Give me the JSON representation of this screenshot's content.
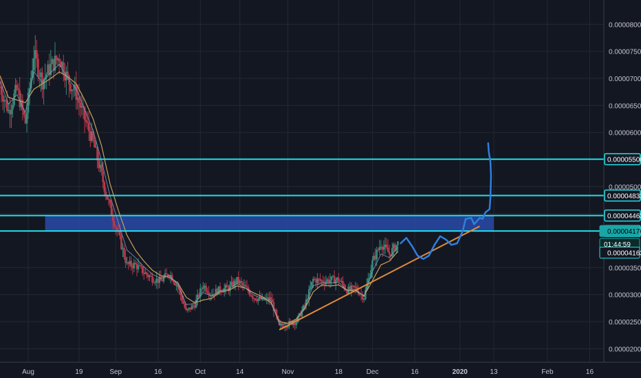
{
  "chart_data": {
    "type": "candlestick",
    "y_axis": {
      "ylim": [
        1.75e-05,
        8.45e-05
      ],
      "tick_labels": [
        "0.00008000",
        "0.00007500",
        "0.00007000",
        "0.00006500",
        "0.00006000",
        "0.00005000",
        "0.00004500",
        "0.00003500",
        "0.00003000",
        "0.00002500",
        "0.00002000"
      ],
      "tick_values": [
        8e-05,
        7.5e-05,
        7e-05,
        6.5e-05,
        6e-05,
        5e-05,
        4.5e-05,
        3.5e-05,
        3e-05,
        2.5e-05,
        2e-05
      ]
    },
    "x_axis": {
      "tick_labels": [
        "Aug",
        "19",
        "Sep",
        "16",
        "Oct",
        "14",
        "Nov",
        "18",
        "Dec",
        "16",
        "2020",
        "13",
        "Feb",
        "16"
      ],
      "tick_days": [
        0,
        18,
        31,
        46,
        61,
        75,
        92,
        110,
        122,
        137,
        153,
        165,
        184,
        199
      ],
      "xlim_days": [
        -10,
        204
      ]
    },
    "horizontal_lines": [
      {
        "price_label": "0.00005506",
        "value": 5.506e-05,
        "color": "#26e0e8"
      },
      {
        "price_label": "0.00004833",
        "value": 4.833e-05,
        "color": "#26e0e8"
      },
      {
        "price_label": "0.00004463",
        "value": 4.463e-05,
        "color": "#26e0e8"
      },
      {
        "price_label": "0.00004176",
        "value": 4.176e-05,
        "color": "#26e0e8"
      }
    ],
    "price_markers": [
      {
        "price_label": "0.00004176",
        "value": 4.176e-05,
        "style": "teal"
      },
      {
        "price_label": "01:44:59",
        "value": 3.936e-05,
        "style": "dark"
      },
      {
        "price_label": "0.00004163",
        "value": 3.776e-05,
        "style": "outline"
      }
    ],
    "zone": {
      "from_value": 4.176e-05,
      "to_value": 4.463e-05,
      "from_day": 6,
      "to_day": 165,
      "color": "#2a4aa8"
    },
    "trendline": {
      "points": [
        [
          89,
          2.35e-05
        ],
        [
          160,
          4.265e-05
        ]
      ],
      "color": "#e08a3c"
    },
    "projection_path_color": "#2f7fe0",
    "price_series_days": [
      -10,
      -7,
      -4,
      -1,
      2,
      5,
      8,
      11,
      14,
      17,
      20,
      23,
      26,
      29,
      32,
      35,
      38,
      41,
      44,
      47,
      50,
      53,
      56,
      59,
      62,
      65,
      68,
      71,
      74,
      77,
      80,
      83,
      86,
      89,
      92,
      95,
      98,
      101,
      104,
      107,
      110,
      113,
      116,
      119,
      122,
      125,
      128,
      131
    ],
    "price_series_values": [
      6.85e-05,
      6.4e-05,
      6.8e-05,
      6.18e-05,
      7.45e-05,
      6.95e-05,
      7.22e-05,
      7.4e-05,
      6.98e-05,
      6.72e-05,
      6.25e-05,
      5.82e-05,
      5.2e-05,
      4.6e-05,
      4.1e-05,
      3.55e-05,
      3.55e-05,
      3.41e-05,
      3.3e-05,
      3.25e-05,
      3.4e-05,
      3.15e-05,
      2.68e-05,
      2.82e-05,
      3.18e-05,
      3.01e-05,
      3.1e-05,
      3.12e-05,
      3.26e-05,
      3.12e-05,
      2.95e-05,
      2.9e-05,
      2.92e-05,
      2.4e-05,
      2.46e-05,
      2.5e-05,
      2.8e-05,
      3.28e-05,
      3.25e-05,
      3.27e-05,
      3.28e-05,
      3.08e-05,
      3.12e-05,
      2.95e-05,
      3.6e-05,
      3.95e-05,
      3.75e-05,
      3.95e-05
    ],
    "ma_series_values": [
      7.05e-05,
      6.65e-05,
      6.6e-05,
      6.55e-05,
      6.8e-05,
      6.9e-05,
      7e-05,
      7.12e-05,
      7.03e-05,
      6.9e-05,
      6.6e-05,
      6.25e-05,
      5.75e-05,
      5.05e-05,
      4.55e-05,
      4.1e-05,
      3.82e-05,
      3.62e-05,
      3.45e-05,
      3.35e-05,
      3.32e-05,
      3.22e-05,
      2.95e-05,
      2.85e-05,
      2.9e-05,
      2.93e-05,
      3.05e-05,
      3.08e-05,
      3.16e-05,
      3.12e-05,
      3.03e-05,
      2.96e-05,
      2.85e-05,
      2.5e-05,
      2.47e-05,
      2.55e-05,
      2.74e-05,
      3.05e-05,
      3.18e-05,
      3.16e-05,
      3.18e-05,
      3.08e-05,
      3.07e-05,
      2.98e-05,
      3.26e-05,
      3.55e-05,
      3.62e-05,
      3.8e-05
    ]
  },
  "colors": {
    "background": "#131722",
    "grid": "#242832",
    "axis_text": "#c3c6ce",
    "candle_up": "#3a8a7a",
    "candle_down": "#b8394a",
    "ma_line": "#c9a15c",
    "ma_fast": "#7fa0c0"
  }
}
